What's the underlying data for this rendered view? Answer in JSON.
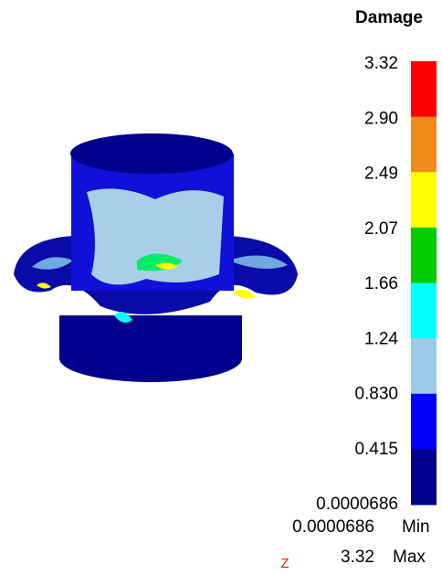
{
  "legend": {
    "title": "Damage",
    "labels": [
      "3.32",
      "2.90",
      "2.49",
      "2.07",
      "1.66",
      "1.24",
      "0.830",
      "0.415",
      "0.0000686"
    ],
    "colors": [
      "#ff0000",
      "#f28a1c",
      "#ffff00",
      "#00cc00",
      "#00ffff",
      "#99cbe8",
      "#0000ff",
      "#00008c"
    ]
  },
  "footer": {
    "min_value": "0.0000686",
    "min_label": "Min",
    "axis": "Z",
    "max_value": "3.32",
    "max_label": "Max"
  }
}
